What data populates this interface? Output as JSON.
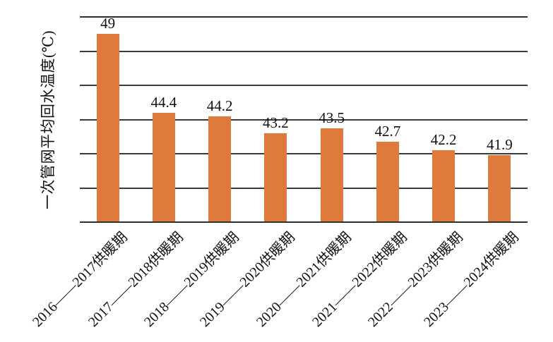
{
  "chart_data": {
    "type": "bar",
    "title": "",
    "categories": [
      "2016——2017供暖期",
      "2017——2018供暖期",
      "2018——2019供暖期",
      "2019——2020供暖期",
      "2020——2021供暖期",
      "2021——2022供暖期",
      "2022——2023供暖期",
      "2023——2024供暖期"
    ],
    "values": [
      49,
      44.4,
      44.2,
      43.2,
      43.5,
      42.7,
      42.2,
      41.9
    ],
    "value_labels": [
      "49",
      "44.4",
      "44.2",
      "43.2",
      "43.5",
      "42.7",
      "42.2",
      "41.9"
    ],
    "xlabel": "",
    "ylabel": "一次管网平均回水温度(℃)",
    "ylim": [
      38,
      50
    ],
    "grid_step": 2,
    "y_tick_labels_visible": false,
    "grid": true,
    "legend": "none",
    "bar_color": "#e0793c",
    "line_color": "#3a3a3a",
    "text_color": "#111111"
  }
}
